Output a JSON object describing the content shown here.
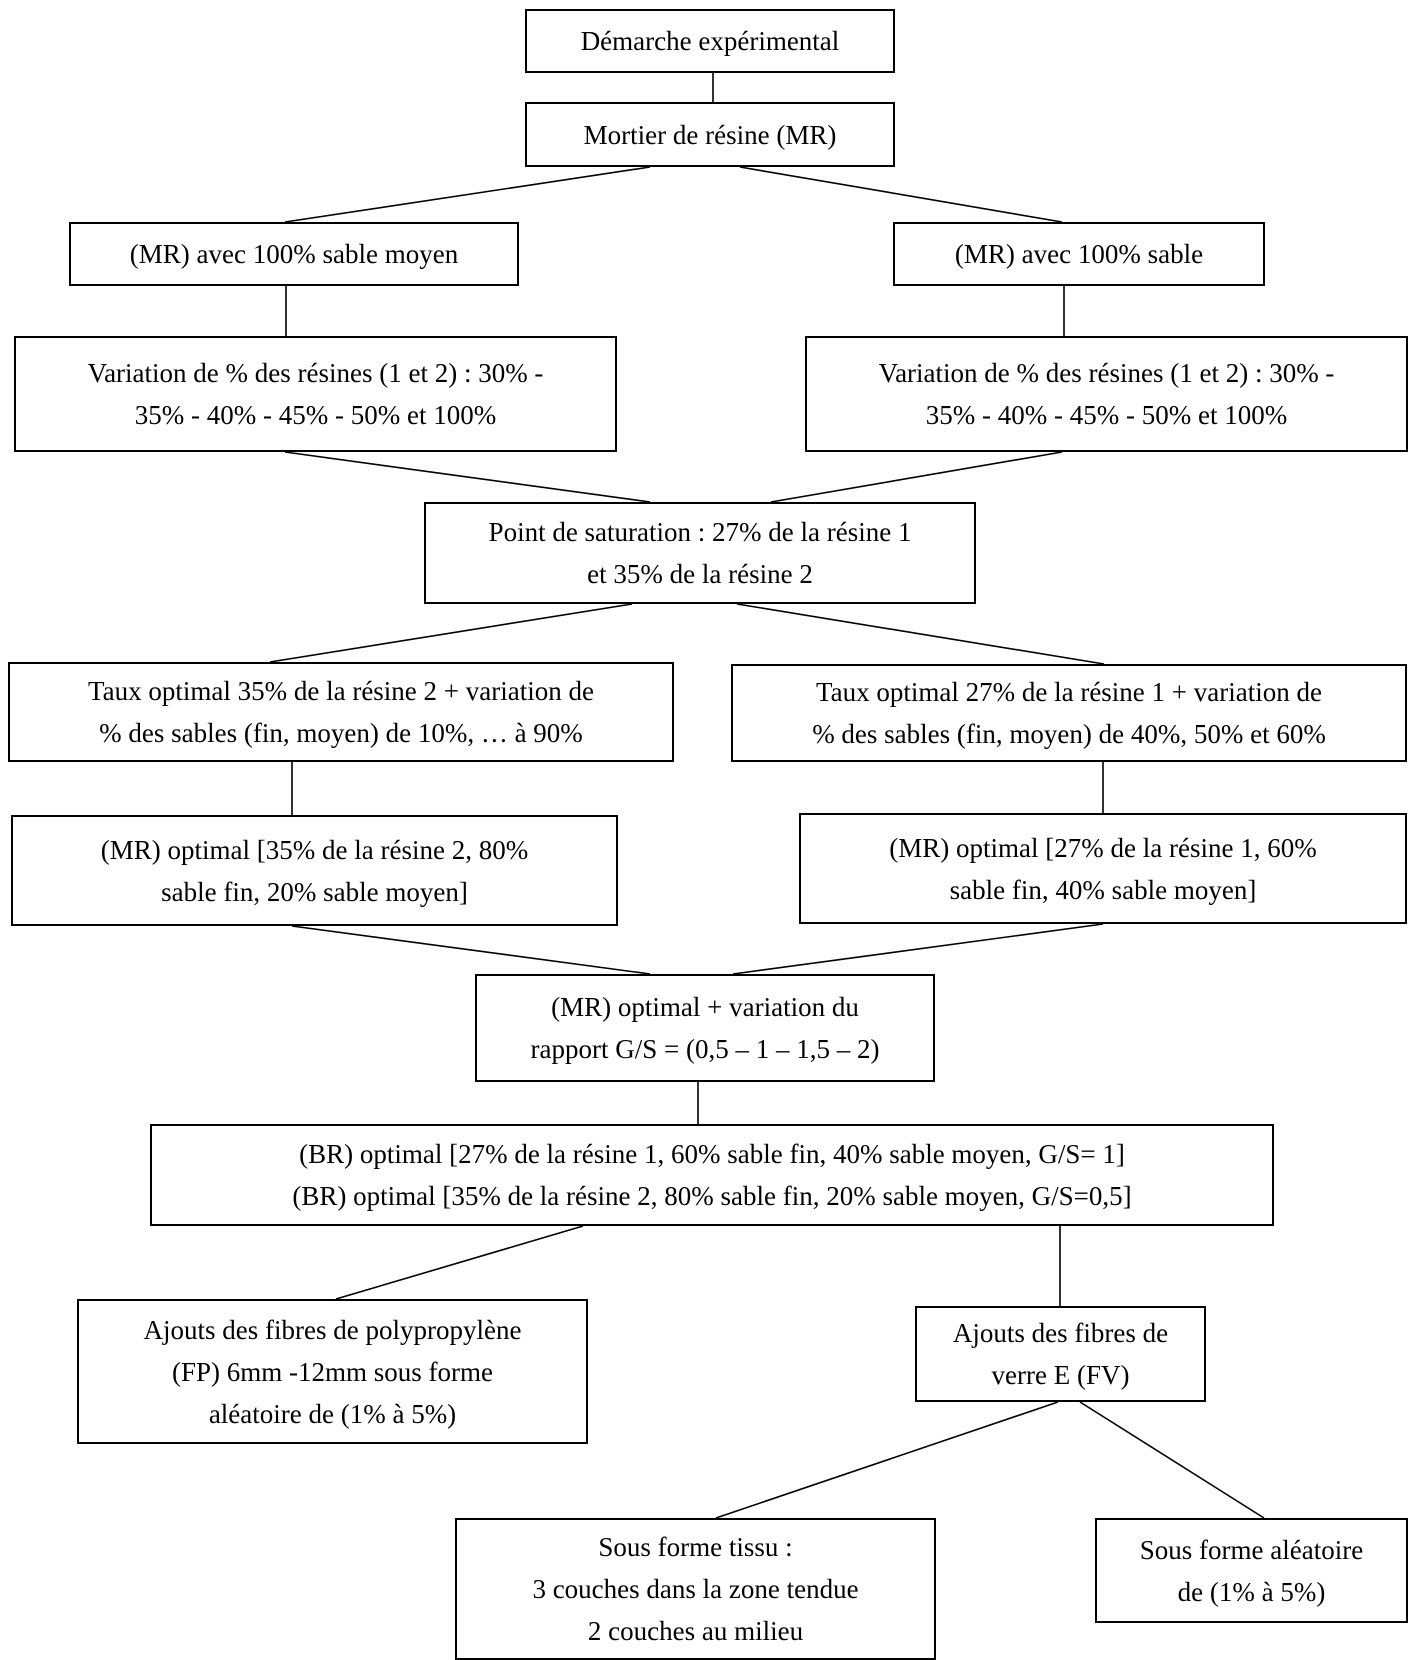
{
  "nodes": {
    "demarche": {
      "lines": [
        "Démarche expérimental"
      ]
    },
    "mortier": {
      "lines": [
        "Mortier de résine (MR)"
      ]
    },
    "mr_sable_moyen": {
      "lines": [
        "(MR) avec 100% sable moyen"
      ]
    },
    "mr_sable": {
      "lines": [
        "(MR) avec 100% sable"
      ]
    },
    "variation_left": {
      "lines": [
        "Variation de % des résines (1 et 2) : 30% -",
        "35% - 40% - 45% - 50%  et 100%"
      ]
    },
    "variation_right": {
      "lines": [
        "Variation de % des résines (1 et 2) : 30% -",
        "35% - 40% - 45% - 50%  et 100%"
      ]
    },
    "saturation": {
      "lines": [
        "Point de saturation  : 27% de la résine 1",
        "et 35% de la résine 2"
      ]
    },
    "taux_left": {
      "lines": [
        "Taux optimal 35% de la résine 2 + variation de",
        "% des sables (fin, moyen) de 10%, … à 90%"
      ]
    },
    "taux_right": {
      "lines": [
        "Taux optimal 27% de la résine 1 + variation de",
        "% des sables (fin, moyen) de 40%, 50% et 60%"
      ]
    },
    "mr_opt_left": {
      "lines": [
        "(MR) optimal [35% de la résine 2, 80%",
        "sable fin, 20% sable moyen]"
      ]
    },
    "mr_opt_right": {
      "lines": [
        "(MR) optimal [27% de la résine 1, 60%",
        "sable fin, 40% sable moyen]"
      ]
    },
    "mr_gs": {
      "lines": [
        "(MR) optimal + variation du",
        "rapport G/S = (0,5 – 1 – 1,5 – 2)"
      ]
    },
    "br_opt": {
      "lines": [
        "(BR) optimal [27% de la résine 1, 60% sable fin, 40% sable moyen, G/S= 1]",
        "(BR) optimal [35% de la résine 2, 80% sable fin, 20% sable moyen, G/S=0,5]"
      ]
    },
    "fp": {
      "lines": [
        "Ajouts des fibres de polypropylène",
        "(FP) 6mm -12mm sous forme",
        "aléatoire de (1% à 5%)"
      ]
    },
    "fv": {
      "lines": [
        "Ajouts des fibres de",
        "verre E (FV)"
      ]
    },
    "tissu": {
      "lines": [
        "Sous forme tissu :",
        "3 couches dans la zone tendue",
        "2 couches au milieu"
      ]
    },
    "aleatoire": {
      "lines": [
        "Sous forme aléatoire",
        "de (1% à 5%)"
      ]
    }
  }
}
